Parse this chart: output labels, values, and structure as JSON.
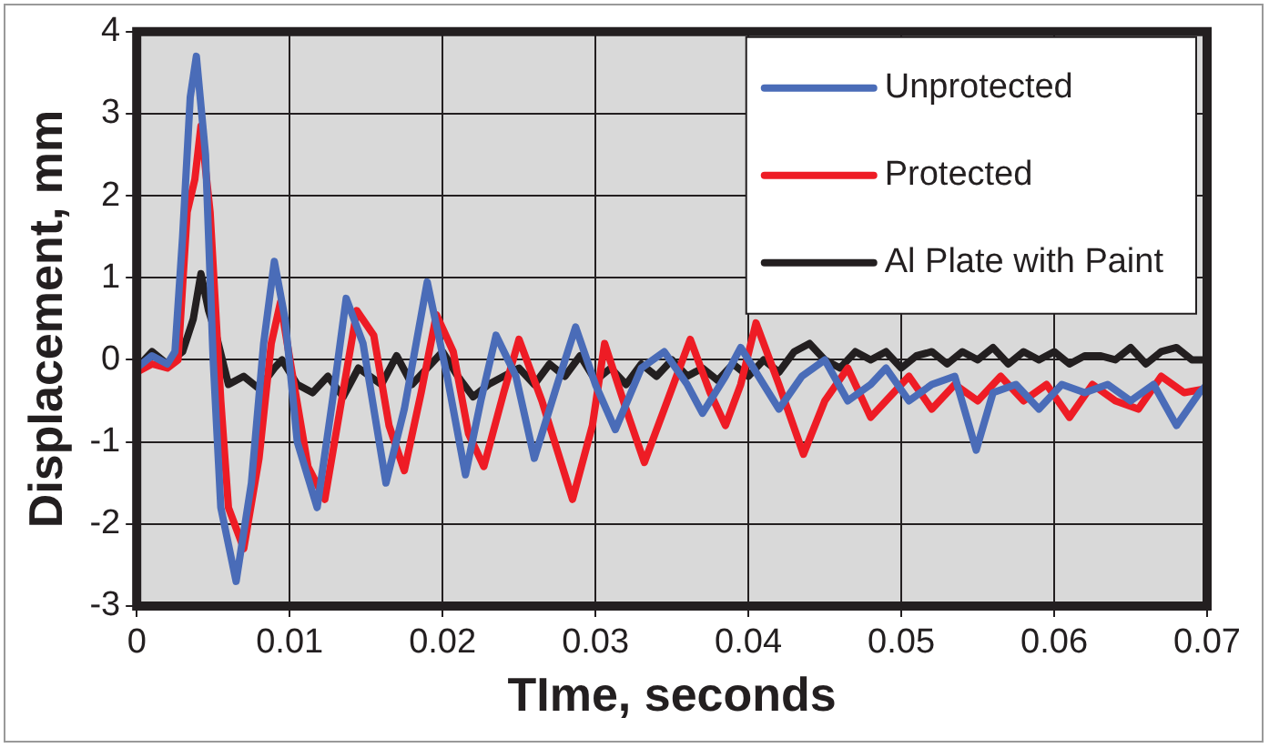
{
  "chart_data": {
    "type": "line",
    "xlabel": "TIme, seconds",
    "ylabel": "Displacement, mm",
    "xlim": [
      0,
      0.07
    ],
    "xticks": [
      0,
      0.01,
      0.02,
      0.03,
      0.04,
      0.05,
      0.06,
      0.07
    ],
    "ylim": [
      -3,
      4
    ],
    "yticks": [
      -3,
      -2,
      -1,
      0,
      1,
      2,
      3,
      4
    ],
    "grid": true,
    "legend": "top right",
    "marker": "none",
    "line_style": "solid",
    "series": [
      {
        "name": "Unprotected",
        "color": "#4a6cb8",
        "x": [
          0,
          0.001,
          0.002,
          0.0025,
          0.003,
          0.0035,
          0.0039,
          0.0045,
          0.005,
          0.0055,
          0.0065,
          0.0075,
          0.0083,
          0.009,
          0.0097,
          0.0105,
          0.0118,
          0.0128,
          0.0137,
          0.0148,
          0.0163,
          0.0175,
          0.019,
          0.0203,
          0.0215,
          0.0225,
          0.0235,
          0.0248,
          0.026,
          0.0275,
          0.0287,
          0.03,
          0.0313,
          0.033,
          0.0345,
          0.036,
          0.037,
          0.0385,
          0.0395,
          0.041,
          0.042,
          0.0435,
          0.045,
          0.0465,
          0.048,
          0.049,
          0.0505,
          0.052,
          0.0535,
          0.0549,
          0.056,
          0.0575,
          0.059,
          0.0605,
          0.062,
          0.0635,
          0.065,
          0.0665,
          0.068,
          0.0695,
          0.07
        ],
        "values": [
          -0.1,
          0.05,
          -0.05,
          0.1,
          1.5,
          3.2,
          3.7,
          2.5,
          0,
          -1.8,
          -2.7,
          -1.5,
          0.2,
          1.2,
          0.5,
          -1,
          -1.8,
          -0.5,
          0.75,
          0.2,
          -1.5,
          -0.6,
          0.95,
          -0.2,
          -1.4,
          -0.5,
          0.3,
          -0.2,
          -1.2,
          -0.3,
          0.4,
          -0.3,
          -0.85,
          -0.1,
          0.1,
          -0.3,
          -0.65,
          -0.2,
          0.15,
          -0.3,
          -0.6,
          -0.2,
          0,
          -0.5,
          -0.3,
          -0.1,
          -0.5,
          -0.3,
          -0.2,
          -1.1,
          -0.4,
          -0.3,
          -0.6,
          -0.3,
          -0.4,
          -0.3,
          -0.5,
          -0.3,
          -0.8,
          -0.4,
          -0.3
        ]
      },
      {
        "name": "Protected",
        "color": "#ee1c25",
        "x": [
          0,
          0.001,
          0.002,
          0.0027,
          0.0033,
          0.0038,
          0.0042,
          0.0048,
          0.0055,
          0.006,
          0.007,
          0.008,
          0.0088,
          0.0094,
          0.0102,
          0.0112,
          0.0123,
          0.0133,
          0.0144,
          0.0155,
          0.0165,
          0.0175,
          0.0186,
          0.0196,
          0.0207,
          0.0217,
          0.0227,
          0.024,
          0.025,
          0.0265,
          0.0285,
          0.0298,
          0.0306,
          0.032,
          0.0332,
          0.0345,
          0.0362,
          0.0375,
          0.0385,
          0.0395,
          0.0405,
          0.042,
          0.0436,
          0.045,
          0.0465,
          0.048,
          0.049,
          0.0505,
          0.052,
          0.0535,
          0.055,
          0.0565,
          0.058,
          0.0595,
          0.061,
          0.0625,
          0.064,
          0.0655,
          0.067,
          0.0685,
          0.07
        ],
        "values": [
          -0.15,
          -0.05,
          -0.1,
          0,
          1.8,
          2.2,
          2.85,
          1.8,
          -0.5,
          -1.8,
          -2.3,
          -1.2,
          0.2,
          0.7,
          -0.2,
          -1.3,
          -1.7,
          -0.6,
          0.6,
          0.3,
          -0.8,
          -1.35,
          -0.4,
          0.55,
          0.1,
          -0.9,
          -1.3,
          -0.4,
          0.25,
          -0.5,
          -1.7,
          -0.8,
          0.2,
          -0.6,
          -1.25,
          -0.6,
          0.25,
          -0.4,
          -0.8,
          -0.3,
          0.45,
          -0.3,
          -1.15,
          -0.5,
          -0.1,
          -0.7,
          -0.5,
          -0.2,
          -0.6,
          -0.3,
          -0.5,
          -0.2,
          -0.5,
          -0.3,
          -0.7,
          -0.3,
          -0.5,
          -0.6,
          -0.2,
          -0.4,
          -0.35
        ]
      },
      {
        "name": "Al Plate with Paint",
        "color": "#231f20",
        "x": [
          0,
          0.001,
          0.002,
          0.003,
          0.0037,
          0.0042,
          0.0047,
          0.0052,
          0.006,
          0.007,
          0.008,
          0.009,
          0.0095,
          0.0105,
          0.0115,
          0.0125,
          0.0135,
          0.0145,
          0.016,
          0.017,
          0.018,
          0.019,
          0.02,
          0.021,
          0.022,
          0.023,
          0.024,
          0.025,
          0.026,
          0.027,
          0.028,
          0.029,
          0.03,
          0.031,
          0.032,
          0.033,
          0.034,
          0.035,
          0.036,
          0.037,
          0.038,
          0.039,
          0.04,
          0.041,
          0.042,
          0.043,
          0.044,
          0.045,
          0.046,
          0.047,
          0.048,
          0.049,
          0.05,
          0.051,
          0.052,
          0.053,
          0.054,
          0.055,
          0.056,
          0.057,
          0.058,
          0.059,
          0.06,
          0.061,
          0.062,
          0.063,
          0.064,
          0.065,
          0.066,
          0.067,
          0.068,
          0.069,
          0.07
        ],
        "values": [
          -0.1,
          0.1,
          -0.05,
          0.1,
          0.5,
          1.05,
          0.6,
          0.3,
          -0.3,
          -0.2,
          -0.35,
          -0.1,
          0,
          -0.3,
          -0.4,
          -0.2,
          -0.45,
          -0.1,
          -0.3,
          0.05,
          -0.3,
          -0.1,
          0.1,
          -0.2,
          -0.45,
          -0.3,
          -0.2,
          -0.1,
          -0.3,
          -0.05,
          -0.2,
          0.05,
          -0.25,
          -0.1,
          -0.3,
          -0.05,
          -0.2,
          0,
          -0.2,
          -0.1,
          -0.25,
          -0.05,
          -0.2,
          0,
          -0.15,
          0.1,
          0.2,
          0,
          -0.1,
          0.1,
          0,
          0.1,
          -0.1,
          0.05,
          0.1,
          -0.05,
          0.1,
          0,
          0.15,
          -0.05,
          0.1,
          0,
          0.1,
          -0.05,
          0.05,
          0.05,
          0,
          0.15,
          -0.05,
          0.1,
          0.15,
          0,
          0
        ]
      }
    ]
  }
}
